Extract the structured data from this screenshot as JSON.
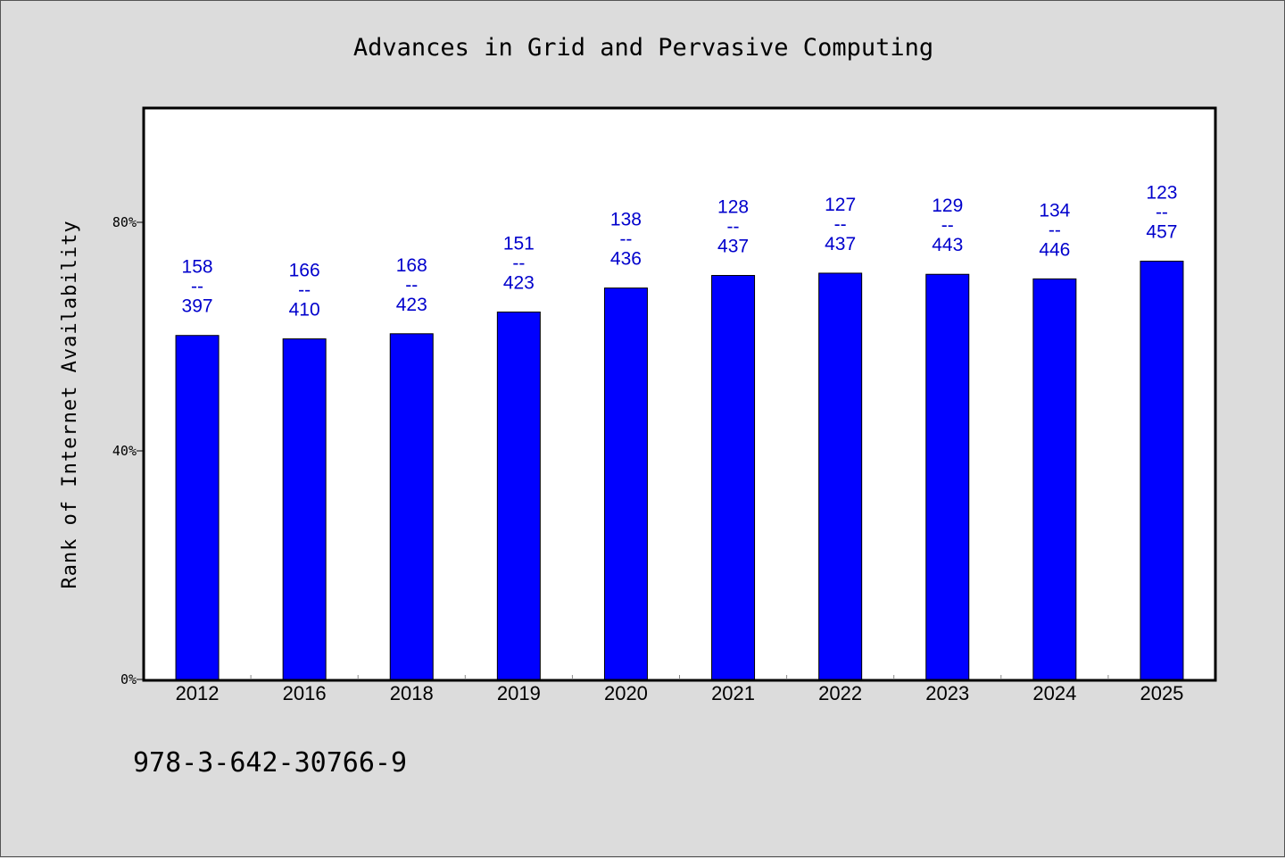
{
  "chart_data": {
    "type": "bar",
    "title": "Advances in Grid and Pervasive Computing",
    "xlabel": "",
    "ylabel": "Rank of Internet Availability",
    "categories": [
      "2012",
      "2016",
      "2018",
      "2019",
      "2020",
      "2021",
      "2022",
      "2023",
      "2024",
      "2025"
    ],
    "values": [
      60.2,
      59.6,
      60.5,
      64.3,
      68.5,
      70.7,
      71.1,
      70.9,
      70.1,
      73.2
    ],
    "value_unit": "%",
    "data_labels": [
      {
        "top": "158",
        "mid": "--",
        "bottom": "397"
      },
      {
        "top": "166",
        "mid": "--",
        "bottom": "410"
      },
      {
        "top": "168",
        "mid": "--",
        "bottom": "423"
      },
      {
        "top": "151",
        "mid": "--",
        "bottom": "423"
      },
      {
        "top": "138",
        "mid": "--",
        "bottom": "436"
      },
      {
        "top": "128",
        "mid": "--",
        "bottom": "437"
      },
      {
        "top": "127",
        "mid": "--",
        "bottom": "437"
      },
      {
        "top": "129",
        "mid": "--",
        "bottom": "443"
      },
      {
        "top": "134",
        "mid": "--",
        "bottom": "446"
      },
      {
        "top": "123",
        "mid": "--",
        "bottom": "457"
      }
    ],
    "yticks": [
      {
        "value": 0,
        "label": "0%"
      },
      {
        "value": 40,
        "label": "40%"
      },
      {
        "value": 80,
        "label": "80%"
      }
    ],
    "ylim": [
      0,
      100
    ],
    "grid": false,
    "legend": "none",
    "bar_color": "#0000ff",
    "label_color": "#0000cc",
    "annotation": "978-3-642-30766-9"
  }
}
